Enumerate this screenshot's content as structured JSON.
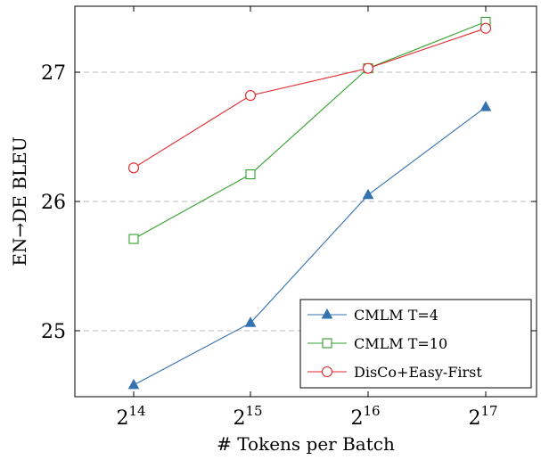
{
  "chart_data": {
    "type": "line",
    "xlabel": "# Tokens per Batch",
    "ylabel": "EN→DE BLEU",
    "x_scale": "log2",
    "x": [
      16384,
      32768,
      65536,
      131072
    ],
    "x_tick_labels": [
      {
        "base": "2",
        "exp": "14"
      },
      {
        "base": "2",
        "exp": "15"
      },
      {
        "base": "2",
        "exp": "16"
      },
      {
        "base": "2",
        "exp": "17"
      }
    ],
    "yticks": [
      25,
      26,
      27
    ],
    "ylim": [
      24.5,
      27.5
    ],
    "grid": "horizontal dashed",
    "legend_position": "bottom-right",
    "series": [
      {
        "name": "CMLM T=4",
        "values": [
          24.58,
          25.06,
          26.05,
          26.73
        ],
        "color": "#3572b0",
        "marker": "triangle"
      },
      {
        "name": "CMLM T=10",
        "values": [
          25.71,
          26.21,
          27.03,
          27.39
        ],
        "color": "#33a02c",
        "marker": "square"
      },
      {
        "name": "DisCo+Easy-First",
        "values": [
          26.26,
          26.82,
          27.03,
          27.34
        ],
        "color": "#e3262a",
        "marker": "circle"
      }
    ]
  }
}
